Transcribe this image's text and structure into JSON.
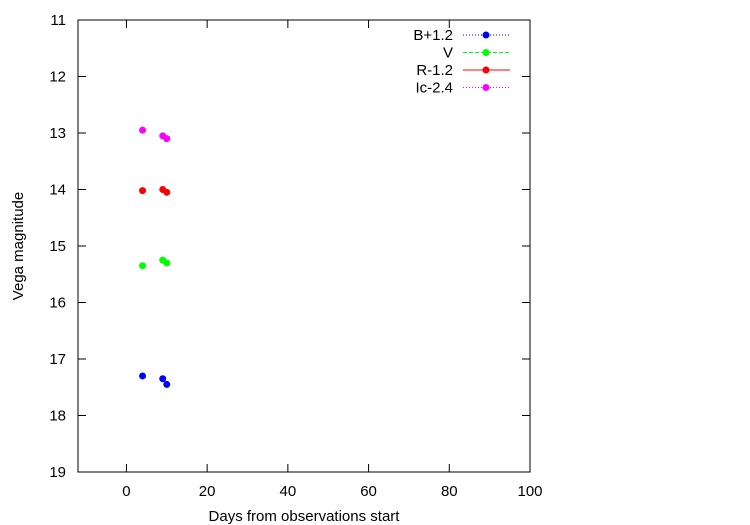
{
  "chart_data": {
    "type": "scatter",
    "title": "",
    "xlabel": "Days from observations start",
    "ylabel": "Vega magnitude",
    "xlim": [
      -12,
      100
    ],
    "ylim": [
      19,
      11
    ],
    "y_inverted": true,
    "grid": false,
    "legend_position": "top-right",
    "x_ticks": [
      0,
      20,
      40,
      60,
      80,
      100
    ],
    "y_ticks": [
      11,
      12,
      13,
      14,
      15,
      16,
      17,
      18,
      19
    ],
    "series": [
      {
        "name": "B+1.2",
        "color": "#0000ff",
        "line_style": "dotted",
        "x": [
          4,
          9,
          10
        ],
        "y": [
          17.3,
          17.35,
          17.45
        ]
      },
      {
        "name": "V",
        "color": "#00ff00",
        "line_style": "dashed",
        "x": [
          4,
          9,
          10
        ],
        "y": [
          15.35,
          15.25,
          15.3
        ]
      },
      {
        "name": "R-1.2",
        "color": "#ff0000",
        "line_style": "solid",
        "x": [
          4,
          9,
          10
        ],
        "y": [
          14.02,
          14.0,
          14.05
        ]
      },
      {
        "name": "Ic-2.4",
        "color": "#ff00ff",
        "line_style": "dotted",
        "x": [
          4,
          9,
          10
        ],
        "y": [
          12.95,
          13.05,
          13.1
        ]
      }
    ]
  }
}
